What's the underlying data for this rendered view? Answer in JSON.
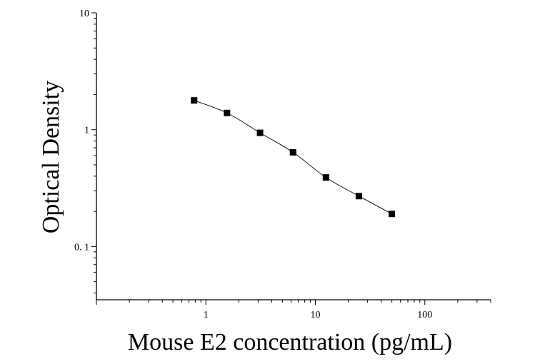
{
  "chart_data": {
    "type": "scatter",
    "x_scale": "log",
    "y_scale": "log",
    "xlabel": "Mouse E2 concentration (pg/mL)",
    "ylabel": "Optical Density",
    "xlim": [
      0.1,
      400
    ],
    "ylim": [
      0.035,
      10
    ],
    "x_ticks": [
      {
        "value": 1,
        "label": "1"
      },
      {
        "value": 10,
        "label": "10"
      },
      {
        "value": 100,
        "label": "100"
      }
    ],
    "y_ticks": [
      {
        "value": 0.1,
        "label": "0. 1"
      },
      {
        "value": 1,
        "label": "1"
      },
      {
        "value": 10,
        "label": "10"
      }
    ],
    "grid": false,
    "series": [
      {
        "marker": "square",
        "color": "#000000",
        "fit_curve": true,
        "points": [
          {
            "x": 0.78,
            "y": 1.78
          },
          {
            "x": 1.56,
            "y": 1.39
          },
          {
            "x": 3.125,
            "y": 0.94
          },
          {
            "x": 6.25,
            "y": 0.64
          },
          {
            "x": 12.5,
            "y": 0.39
          },
          {
            "x": 25,
            "y": 0.27
          },
          {
            "x": 50,
            "y": 0.19
          }
        ]
      }
    ]
  }
}
